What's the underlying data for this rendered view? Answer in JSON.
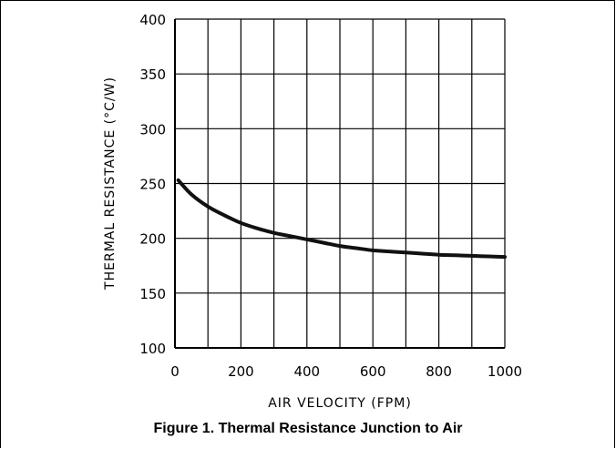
{
  "chart_data": {
    "type": "line",
    "xlabel": "AIR VELOCITY (FPM)",
    "ylabel": "THERMAL RESISTANCE (°C/W)",
    "xlim": [
      0,
      1000
    ],
    "ylim": [
      100,
      400
    ],
    "x_ticks": [
      "0",
      "200",
      "400",
      "600",
      "800",
      "1000"
    ],
    "y_ticks": [
      "100",
      "150",
      "200",
      "250",
      "300",
      "350",
      "400"
    ],
    "grid": true,
    "series": [
      {
        "x": [
          10,
          50,
          100,
          150,
          200,
          250,
          300,
          350,
          400,
          450,
          500,
          550,
          600,
          650,
          700,
          750,
          800,
          850,
          900,
          950,
          1000
        ],
        "y": [
          253,
          240,
          229,
          221,
          214,
          209,
          205,
          202,
          199,
          196,
          193,
          191,
          189,
          188,
          187,
          186,
          185,
          184.5,
          184,
          183.5,
          183
        ]
      }
    ]
  },
  "caption": "Figure 1. Thermal Resistance Junction to Air"
}
